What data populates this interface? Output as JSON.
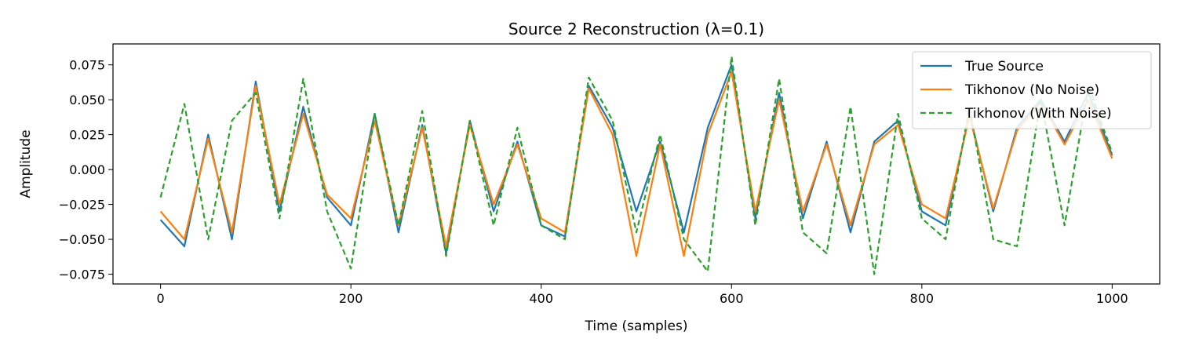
{
  "chart_data": {
    "type": "line",
    "title": "Source 2 Reconstruction (λ=0.1)",
    "xlabel": "Time (samples)",
    "ylabel": "Amplitude",
    "xlim": [
      -50,
      1050
    ],
    "ylim": [
      -0.082,
      0.09
    ],
    "x_ticks": [
      0,
      200,
      400,
      600,
      800,
      1000
    ],
    "x_tick_labels": [
      "0",
      "200",
      "400",
      "600",
      "800",
      "1000"
    ],
    "y_ticks": [
      -0.075,
      -0.05,
      -0.025,
      0.0,
      0.025,
      0.05,
      0.075
    ],
    "y_tick_labels": [
      "−0.075",
      "−0.050",
      "−0.025",
      "0.000",
      "0.025",
      "0.050",
      "0.075"
    ],
    "grid": false,
    "legend_position": "top-right",
    "series": [
      {
        "name": "True Source",
        "color": "#1f77b4",
        "style": "solid",
        "x": [
          0,
          25,
          50,
          75,
          100,
          125,
          150,
          175,
          200,
          225,
          250,
          275,
          300,
          325,
          350,
          375,
          400,
          425,
          450,
          475,
          500,
          525,
          550,
          575,
          600,
          625,
          650,
          675,
          700,
          725,
          750,
          775,
          800,
          825,
          850,
          875,
          900,
          925,
          950,
          975,
          1000
        ],
        "y": [
          -0.036,
          -0.055,
          0.025,
          -0.05,
          0.063,
          -0.03,
          0.045,
          -0.02,
          -0.04,
          0.04,
          -0.045,
          0.032,
          -0.06,
          0.035,
          -0.03,
          0.02,
          -0.04,
          -0.048,
          0.06,
          0.03,
          -0.03,
          0.02,
          -0.045,
          0.03,
          0.075,
          -0.035,
          0.055,
          -0.035,
          0.02,
          -0.045,
          0.02,
          0.035,
          -0.03,
          -0.04,
          0.04,
          -0.03,
          0.03,
          0.05,
          0.02,
          0.055,
          0.01
        ]
      },
      {
        "name": "Tikhonov (No Noise)",
        "color": "#ff7f0e",
        "style": "solid",
        "x": [
          0,
          25,
          50,
          75,
          100,
          125,
          150,
          175,
          200,
          225,
          250,
          275,
          300,
          325,
          350,
          375,
          400,
          425,
          450,
          475,
          500,
          525,
          550,
          575,
          600,
          625,
          650,
          675,
          700,
          725,
          750,
          775,
          800,
          825,
          850,
          875,
          900,
          925,
          950,
          975,
          1000
        ],
        "y": [
          -0.03,
          -0.05,
          0.022,
          -0.045,
          0.06,
          -0.025,
          0.04,
          -0.018,
          -0.035,
          0.035,
          -0.04,
          0.03,
          -0.055,
          0.032,
          -0.025,
          0.018,
          -0.035,
          -0.045,
          0.058,
          0.025,
          -0.062,
          0.018,
          -0.062,
          0.025,
          0.07,
          -0.03,
          0.05,
          -0.03,
          0.018,
          -0.04,
          0.018,
          0.032,
          -0.025,
          -0.035,
          0.038,
          -0.028,
          0.028,
          0.048,
          0.018,
          0.05,
          0.008
        ]
      },
      {
        "name": "Tikhonov (With Noise)",
        "color": "#2ca02c",
        "style": "dashed",
        "x": [
          0,
          25,
          50,
          75,
          100,
          125,
          150,
          175,
          200,
          225,
          250,
          275,
          300,
          325,
          350,
          375,
          400,
          425,
          450,
          475,
          500,
          525,
          550,
          575,
          600,
          625,
          650,
          675,
          700,
          725,
          750,
          775,
          800,
          825,
          850,
          875,
          900,
          925,
          950,
          975,
          1000
        ],
        "y": [
          -0.02,
          0.047,
          -0.05,
          0.035,
          0.055,
          -0.035,
          0.065,
          -0.03,
          -0.071,
          0.04,
          -0.04,
          0.042,
          -0.062,
          0.035,
          -0.04,
          0.03,
          -0.04,
          -0.05,
          0.066,
          0.035,
          -0.045,
          0.025,
          -0.05,
          -0.073,
          0.081,
          -0.04,
          0.065,
          -0.045,
          -0.06,
          0.045,
          -0.075,
          0.04,
          -0.035,
          -0.05,
          0.045,
          -0.05,
          -0.055,
          0.05,
          -0.04,
          0.06,
          0.012
        ]
      }
    ]
  }
}
